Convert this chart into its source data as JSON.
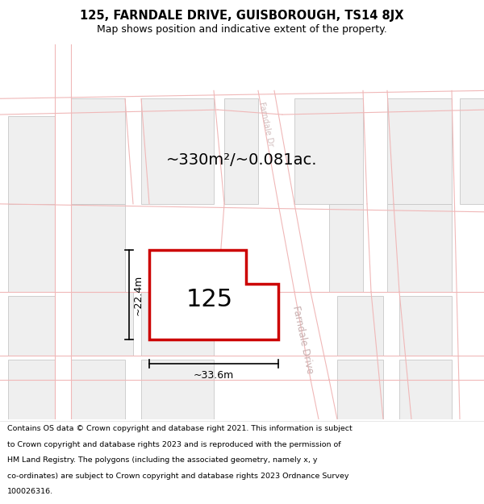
{
  "title_line1": "125, FARNDALE DRIVE, GUISBOROUGH, TS14 8JX",
  "title_line2": "Map shows position and indicative extent of the property.",
  "footer_lines": [
    "Contains OS data © Crown copyright and database right 2021. This information is subject",
    "to Crown copyright and database rights 2023 and is reproduced with the permission of",
    "HM Land Registry. The polygons (including the associated geometry, namely x, y",
    "co-ordinates) are subject to Crown copyright and database rights 2023 Ordnance Survey",
    "100026316."
  ],
  "area_text": "~330m²/~0.081ac.",
  "property_number": "125",
  "dim_width": "~33.6m",
  "dim_height": "~22.4m",
  "map_bg": "#ffffff",
  "title_bg": "#ffffff",
  "footer_bg": "#ffffff",
  "road_line_color": "#f0b8b8",
  "property_outline_color": "#cc0000",
  "property_fill": "#ffffff",
  "other_property_outline": "#c8c8c8",
  "other_property_fill": "#efefef",
  "road_label_color": "#c8b0b0"
}
